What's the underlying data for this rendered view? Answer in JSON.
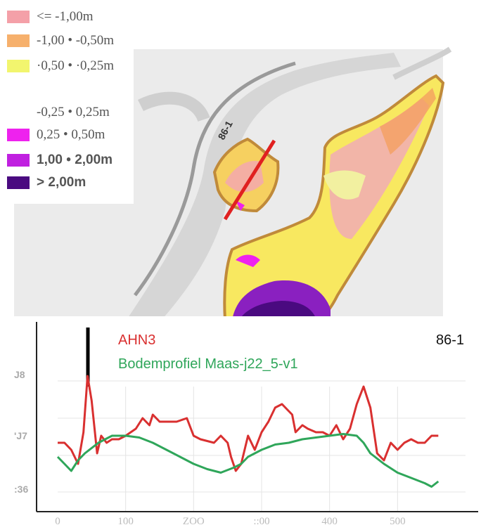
{
  "legend": {
    "items": [
      {
        "label": "<= -1,00m",
        "color": "#f4a0a8"
      },
      {
        "label": "-1,00 • -0,50m",
        "color": "#f6b06c"
      },
      {
        "label": "·0,50 • ·0,25m",
        "color": "#f2f56e"
      },
      {
        "label": "-0,25 • 0,25m",
        "color": ""
      },
      {
        "label": "0,25 • 0,50m",
        "color": "#ee22ee"
      },
      {
        "label": "1,00 • 2,00m",
        "color": "#c020e0"
      },
      {
        "label": "> 2,00m",
        "color": "#4a0a80"
      }
    ]
  },
  "map": {
    "profile_label": "86-1"
  },
  "chart_data": {
    "type": "line",
    "title": "86-1",
    "legend_position": "top-left",
    "xlim": [
      0,
      600
    ],
    "ylim": [
      35.6,
      38.8
    ],
    "x_ticks": [
      "0",
      "100",
      "ZOO",
      "::00",
      "400",
      "500"
    ],
    "y_ticks": [
      "J8",
      "'J7",
      ":36"
    ],
    "grid": true,
    "series": [
      {
        "name": "AHN3",
        "color": "#d93030",
        "x": [
          0,
          10,
          20,
          30,
          38,
          44,
          50,
          58,
          64,
          72,
          80,
          90,
          100,
          115,
          125,
          135,
          140,
          150,
          160,
          175,
          190,
          200,
          210,
          230,
          240,
          250,
          255,
          262,
          270,
          280,
          290,
          300,
          310,
          320,
          330,
          345,
          350,
          360,
          368,
          380,
          390,
          400,
          410,
          420,
          430,
          440,
          450,
          460,
          470,
          480,
          490,
          500,
          510,
          520,
          530,
          540,
          550,
          560
        ],
        "values": [
          37.0,
          37.0,
          36.8,
          36.4,
          37.3,
          38.9,
          38.2,
          36.7,
          37.2,
          37.0,
          37.1,
          37.1,
          37.2,
          37.4,
          37.7,
          37.5,
          37.8,
          37.6,
          37.6,
          37.6,
          37.7,
          37.2,
          37.1,
          37.0,
          37.2,
          37.0,
          36.6,
          36.2,
          36.4,
          37.2,
          36.8,
          37.3,
          37.6,
          38.0,
          38.1,
          37.8,
          37.3,
          37.5,
          37.4,
          37.3,
          37.3,
          37.2,
          37.5,
          37.1,
          37.4,
          38.1,
          38.6,
          38.0,
          36.7,
          36.5,
          37.0,
          36.8,
          37.0,
          37.1,
          37.0,
          37.0,
          37.2,
          37.2
        ]
      },
      {
        "name": "Bodemprofiel Maas-j22_5-v1",
        "color": "#2fa65a",
        "x": [
          0,
          10,
          20,
          30,
          40,
          60,
          80,
          100,
          120,
          140,
          160,
          180,
          200,
          220,
          240,
          260,
          270,
          280,
          300,
          320,
          340,
          360,
          380,
          400,
          420,
          440,
          450,
          460,
          480,
          500,
          520,
          540,
          550,
          560
        ],
        "values": [
          36.6,
          36.4,
          36.2,
          36.5,
          36.7,
          37.0,
          37.2,
          37.2,
          37.15,
          37.0,
          36.8,
          36.6,
          36.4,
          36.25,
          36.15,
          36.3,
          36.4,
          36.6,
          36.8,
          36.95,
          37.0,
          37.1,
          37.15,
          37.2,
          37.25,
          37.2,
          37.0,
          36.7,
          36.4,
          36.15,
          36.0,
          35.85,
          35.75,
          35.9
        ]
      }
    ]
  }
}
